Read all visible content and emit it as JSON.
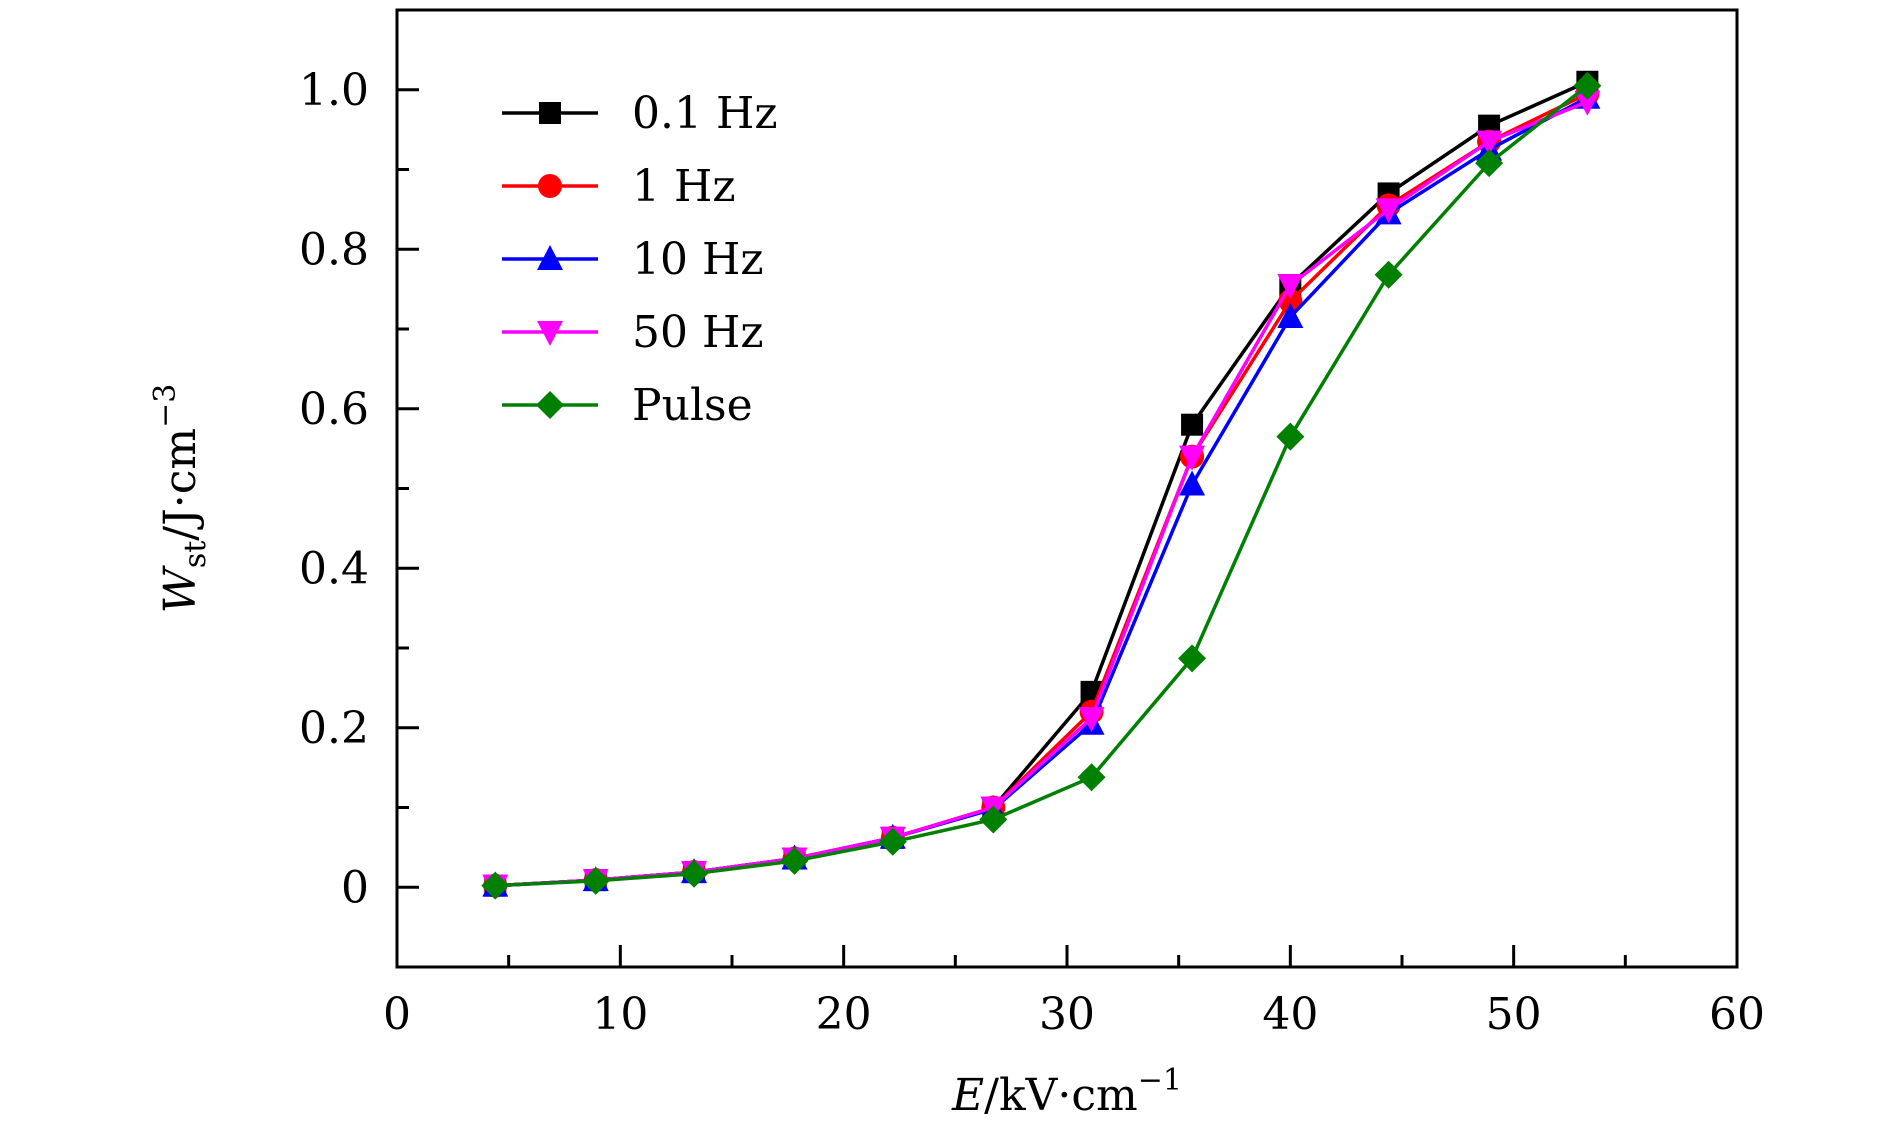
{
  "chart_data": {
    "type": "line",
    "xlabel": {
      "main": "E",
      "unit": "/kV·cm",
      "sup": "−1"
    },
    "ylabel": {
      "main": "W",
      "sub": "st",
      "unit": "/J·cm",
      "sup": "−3"
    },
    "xlim": [
      0,
      60
    ],
    "ylim": [
      -0.1,
      1.1
    ],
    "xticks": [
      0,
      10,
      20,
      30,
      40,
      50,
      60
    ],
    "xtick_labels": [
      "0",
      "10",
      "20",
      "30",
      "40",
      "50",
      "60"
    ],
    "yticks": [
      0,
      0.2,
      0.4,
      0.6,
      0.8,
      1.0
    ],
    "ytick_labels": [
      "0",
      "0.2",
      "0.4",
      "0.6",
      "0.8",
      "1.0"
    ],
    "grid": false,
    "legend_position": "top-left",
    "x": [
      4.4,
      8.9,
      13.3,
      17.8,
      22.2,
      26.7,
      31.1,
      35.6,
      40.0,
      44.4,
      48.9,
      53.3
    ],
    "series": [
      {
        "name": "0.1 Hz",
        "color": "#000000",
        "marker": "square",
        "values": [
          0.002,
          0.009,
          0.019,
          0.036,
          0.062,
          0.1,
          0.245,
          0.58,
          0.755,
          0.87,
          0.955,
          1.01
        ]
      },
      {
        "name": "1 Hz",
        "color": "#ff0000",
        "marker": "circle",
        "values": [
          0.002,
          0.009,
          0.019,
          0.036,
          0.062,
          0.1,
          0.22,
          0.54,
          0.735,
          0.855,
          0.935,
          0.995
        ]
      },
      {
        "name": "10 Hz",
        "color": "#0000ff",
        "marker": "triangle-up",
        "values": [
          0.002,
          0.009,
          0.019,
          0.036,
          0.062,
          0.098,
          0.205,
          0.505,
          0.715,
          0.845,
          0.925,
          0.99
        ]
      },
      {
        "name": "50 Hz",
        "color": "#ff00ff",
        "marker": "triangle-down",
        "values": [
          0.002,
          0.009,
          0.019,
          0.036,
          0.062,
          0.1,
          0.212,
          0.54,
          0.755,
          0.85,
          0.935,
          0.985
        ]
      },
      {
        "name": "Pulse",
        "color": "#008000",
        "marker": "diamond",
        "values": [
          0.002,
          0.008,
          0.017,
          0.033,
          0.057,
          0.085,
          0.138,
          0.287,
          0.565,
          0.768,
          0.908,
          1.005
        ]
      }
    ]
  }
}
